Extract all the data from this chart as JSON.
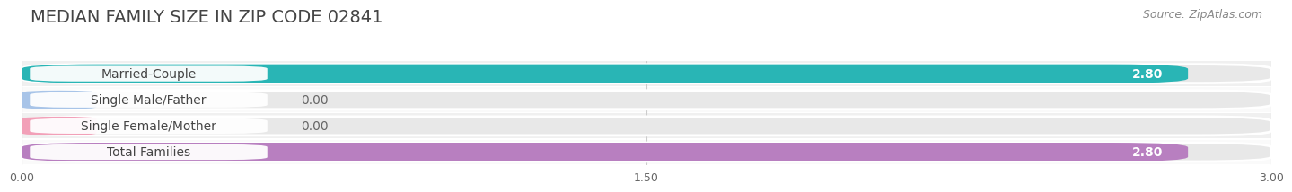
{
  "title": "MEDIAN FAMILY SIZE IN ZIP CODE 02841",
  "source": "Source: ZipAtlas.com",
  "categories": [
    "Married-Couple",
    "Single Male/Father",
    "Single Female/Mother",
    "Total Families"
  ],
  "values": [
    2.8,
    0.0,
    0.0,
    2.8
  ],
  "bar_colors": [
    "#29b5b5",
    "#a8c4e8",
    "#f2a0b8",
    "#b87fc0"
  ],
  "bar_labels": [
    "2.80",
    "0.00",
    "0.00",
    "2.80"
  ],
  "xlim": [
    0,
    3.0
  ],
  "xticks": [
    0.0,
    1.5,
    3.0
  ],
  "xticklabels": [
    "0.00",
    "1.50",
    "3.00"
  ],
  "background_color": "#ffffff",
  "bar_bg_color": "#e8e8e8",
  "row_bg_even": "#f0f0f0",
  "row_bg_odd": "#fafafa",
  "title_fontsize": 14,
  "source_fontsize": 9,
  "label_fontsize": 10,
  "tick_fontsize": 9,
  "value_fontsize": 10
}
